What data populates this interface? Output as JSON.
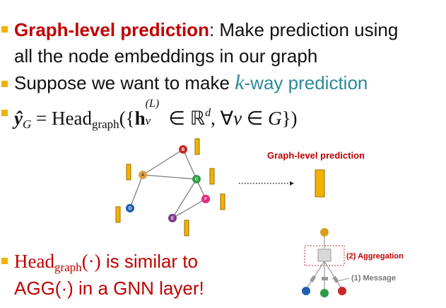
{
  "bullets": {
    "b1": {
      "keyword": "Graph-level prediction",
      "rest1": ": Make prediction using",
      "rest2": "all the node embeddings in our graph"
    },
    "b2": {
      "pre": "Suppose we want to make ",
      "k": "k",
      "post": "-way prediction"
    },
    "b3": {
      "y": "ŷ",
      "G": "G",
      "eq": " = Head",
      "sub": "graph",
      "open": "({",
      "h": "h",
      "v": "v",
      "L": "(L)",
      "in": " ∈ ℝ",
      "d": "d",
      "forall": ", ∀",
      "v2": "v",
      "in2": " ∈ ",
      "G2": "G",
      "close": "})"
    },
    "b4": {
      "head": "Head",
      "sub": "graph",
      "dot": "(·)",
      "rest": " is similar to",
      "line2": "AGG(·) in a GNN layer!"
    }
  },
  "graph": {
    "nodes": [
      {
        "id": "A",
        "color": "#e0a040"
      },
      {
        "id": "B",
        "color": "#c62828"
      },
      {
        "id": "C",
        "color": "#2e9a4a"
      },
      {
        "id": "D",
        "color": "#1f5fb0"
      },
      {
        "id": "E",
        "color": "#7a3a8a"
      },
      {
        "id": "F",
        "color": "#e02a7a"
      }
    ],
    "edges": [
      [
        "A",
        "B"
      ],
      [
        "A",
        "C"
      ],
      [
        "A",
        "D"
      ],
      [
        "B",
        "C"
      ],
      [
        "C",
        "E"
      ],
      [
        "C",
        "F"
      ],
      [
        "F",
        "E"
      ]
    ]
  },
  "labels": {
    "graph_level": "Graph-level prediction",
    "aggregation": "(2) Aggregation",
    "message": "(1) Message"
  },
  "colors": {
    "accent": "#f2b200",
    "red": "#c00000",
    "teal": "#2b8a9a",
    "gray": "#888888"
  }
}
